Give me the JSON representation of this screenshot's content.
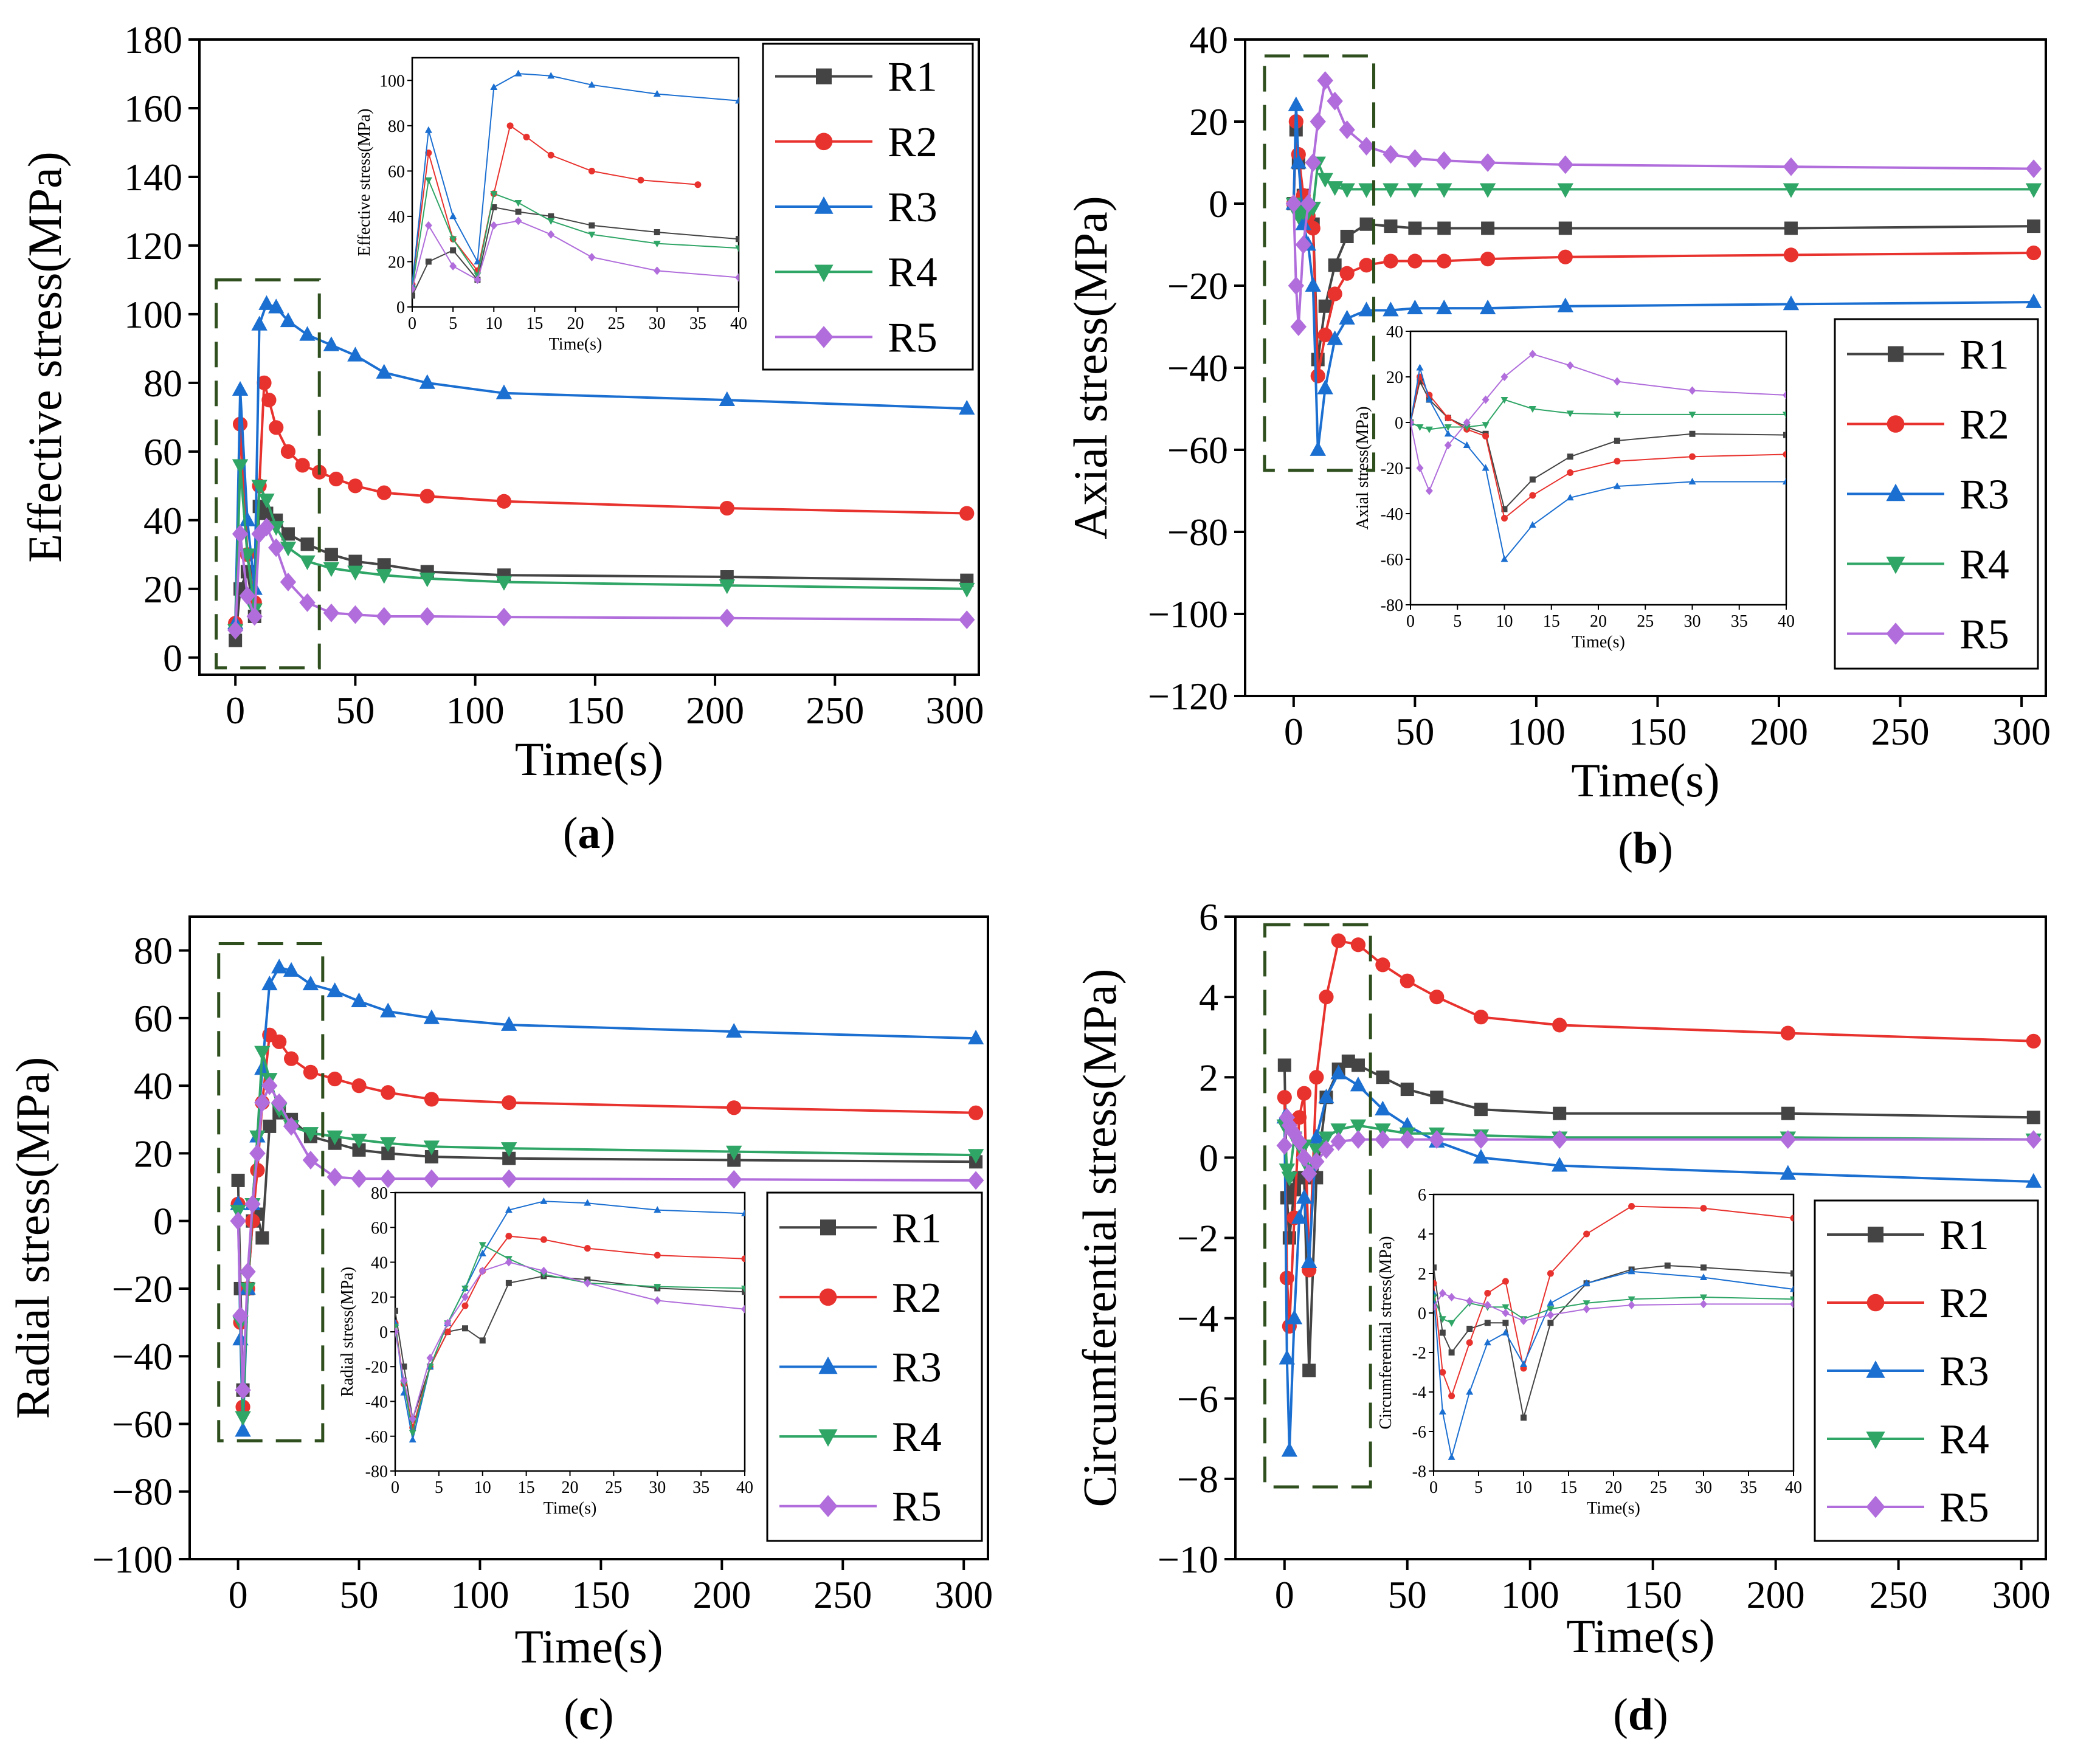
{
  "figure": {
    "series_names": [
      "R1",
      "R2",
      "R3",
      "R4",
      "R5"
    ],
    "series_colors": {
      "R1": "#444444",
      "R2": "#e8322e",
      "R3": "#1b6fd1",
      "R4": "#2fa566",
      "R5": "#b06ddb"
    },
    "series_markers": {
      "R1": "square",
      "R2": "circle",
      "R3": "triangle-up",
      "R4": "triangle-down",
      "R5": "diamond"
    }
  },
  "chart_data": [
    {
      "panel": "a",
      "type": "line",
      "label_pre": "(",
      "label_letter": "a",
      "label_post": ")",
      "xlabel": "Time(s)",
      "ylabel": "Effective stress(MPa)",
      "xlim": [
        -15,
        310
      ],
      "ylim": [
        -5,
        180
      ],
      "xticks": [
        0,
        50,
        100,
        150,
        200,
        250,
        300
      ],
      "yticks": [
        0,
        20,
        40,
        60,
        80,
        100,
        120,
        140,
        160,
        180
      ],
      "legend": [
        "R1",
        "R2",
        "R3",
        "R4",
        "R5"
      ],
      "legend_position": "top-right",
      "series": [
        {
          "name": "R1",
          "x": [
            0,
            2,
            5,
            8,
            10,
            13,
            17,
            22,
            30,
            40,
            50,
            62,
            80,
            112,
            205,
            305
          ],
          "y": [
            5,
            20,
            25,
            12,
            44,
            42,
            40,
            36,
            33,
            30,
            28,
            27,
            25,
            24,
            23.5,
            22.5
          ]
        },
        {
          "name": "R2",
          "x": [
            0,
            2,
            5,
            8,
            10,
            12,
            14,
            17,
            22,
            28,
            35,
            42,
            50,
            62,
            80,
            112,
            205,
            305
          ],
          "y": [
            10,
            68,
            30,
            16,
            50,
            80,
            75,
            67,
            60,
            56,
            54,
            52,
            50,
            48,
            47,
            45.5,
            43.5,
            42
          ]
        },
        {
          "name": "R3",
          "x": [
            0,
            2,
            5,
            8,
            10,
            13,
            17,
            22,
            30,
            40,
            50,
            62,
            80,
            112,
            205,
            305
          ],
          "y": [
            10,
            78,
            40,
            20,
            97,
            103,
            102,
            98,
            94,
            91,
            88,
            83,
            80,
            77,
            75,
            72.5
          ]
        },
        {
          "name": "R4",
          "x": [
            0,
            2,
            5,
            8,
            10,
            13,
            17,
            22,
            30,
            40,
            50,
            62,
            80,
            112,
            205,
            305
          ],
          "y": [
            8,
            56,
            30,
            14,
            50,
            46,
            38,
            32,
            28,
            26,
            25,
            24,
            23,
            22,
            21,
            20
          ]
        },
        {
          "name": "R5",
          "x": [
            0,
            2,
            5,
            8,
            10,
            13,
            17,
            22,
            30,
            40,
            50,
            62,
            80,
            112,
            205,
            305
          ],
          "y": [
            8,
            36,
            18,
            12,
            36,
            38,
            32,
            22,
            16,
            13,
            12.5,
            12,
            12,
            11.8,
            11.5,
            11
          ]
        }
      ],
      "zoom_box": {
        "x": [
          -8,
          35
        ],
        "y": [
          -3,
          110
        ]
      },
      "inset": {
        "xlabel": "Time(s)",
        "ylabel": "Effective stress(MPa)",
        "xlim": [
          0,
          40
        ],
        "ylim": [
          0,
          110
        ],
        "xticks": [
          0,
          5,
          10,
          15,
          20,
          25,
          30,
          35,
          40
        ],
        "yticks": [
          0,
          20,
          40,
          60,
          80,
          100
        ]
      }
    },
    {
      "panel": "b",
      "type": "line",
      "label_pre": "(",
      "label_letter": "b",
      "label_post": ")",
      "xlabel": "Time(s)",
      "ylabel": "Axial stress(MPa)",
      "xlim": [
        -20,
        310
      ],
      "ylim": [
        -120,
        40
      ],
      "xticks": [
        0,
        50,
        100,
        150,
        200,
        250,
        300
      ],
      "yticks": [
        -120,
        -100,
        -80,
        -60,
        -40,
        -20,
        0,
        20,
        40
      ],
      "legend": [
        "R1",
        "R2",
        "R3",
        "R4",
        "R5"
      ],
      "legend_position": "bottom-right",
      "series": [
        {
          "name": "R1",
          "x": [
            0,
            1,
            2,
            4,
            6,
            8,
            10,
            13,
            17,
            22,
            30,
            40,
            50,
            62,
            80,
            112,
            205,
            305
          ],
          "y": [
            0,
            18,
            10,
            2,
            -2,
            -5,
            -38,
            -25,
            -15,
            -8,
            -5,
            -5.5,
            -6,
            -6,
            -6,
            -6,
            -6,
            -5.5
          ]
        },
        {
          "name": "R2",
          "x": [
            0,
            1,
            2,
            4,
            6,
            8,
            10,
            13,
            17,
            22,
            30,
            40,
            50,
            62,
            80,
            112,
            205,
            305
          ],
          "y": [
            0,
            20,
            12,
            2,
            -3,
            -6,
            -42,
            -32,
            -22,
            -17,
            -15,
            -14,
            -14,
            -14,
            -13.5,
            -13,
            -12.5,
            -12
          ]
        },
        {
          "name": "R3",
          "x": [
            0,
            1,
            2,
            4,
            6,
            8,
            10,
            13,
            17,
            22,
            30,
            40,
            50,
            62,
            80,
            112,
            205,
            305
          ],
          "y": [
            0,
            24,
            10,
            -5,
            -10,
            -20,
            -60,
            -45,
            -33,
            -28,
            -26,
            -26,
            -25.5,
            -25.5,
            -25.5,
            -25,
            -24.5,
            -24
          ]
        },
        {
          "name": "R4",
          "x": [
            0,
            1,
            2,
            4,
            6,
            8,
            10,
            13,
            17,
            22,
            30,
            40,
            50,
            62,
            80,
            112,
            205,
            305
          ],
          "y": [
            0,
            -2,
            -3,
            -2,
            -2,
            -1,
            10,
            6,
            4,
            3.5,
            3.5,
            3.5,
            3.5,
            3.5,
            3.5,
            3.5,
            3.5,
            3.5
          ]
        },
        {
          "name": "R5",
          "x": [
            0,
            1,
            2,
            4,
            6,
            8,
            10,
            13,
            17,
            22,
            30,
            40,
            50,
            62,
            80,
            112,
            205,
            305
          ],
          "y": [
            0,
            -20,
            -30,
            -10,
            0,
            10,
            20,
            30,
            25,
            18,
            14,
            12,
            11,
            10.5,
            10,
            9.5,
            9,
            8.5
          ]
        }
      ],
      "zoom_box": {
        "x": [
          -12,
          33
        ],
        "y": [
          -65,
          36
        ]
      },
      "inset": {
        "xlabel": "Time(s)",
        "ylabel": "Axial stress(MPa)",
        "xlim": [
          0,
          40
        ],
        "ylim": [
          -80,
          40
        ],
        "xticks": [
          0,
          5,
          10,
          15,
          20,
          25,
          30,
          35,
          40
        ],
        "yticks": [
          -80,
          -60,
          -40,
          -20,
          0,
          20,
          40
        ]
      }
    },
    {
      "panel": "c",
      "type": "line",
      "label_pre": "(",
      "label_letter": "c",
      "label_post": ")",
      "xlabel": "Time(s)",
      "ylabel": "Radial stress(MPa)",
      "xlim": [
        -20,
        310
      ],
      "ylim": [
        -100,
        90
      ],
      "xticks": [
        0,
        50,
        100,
        150,
        200,
        250,
        300
      ],
      "yticks": [
        -100,
        -80,
        -60,
        -40,
        -20,
        0,
        20,
        40,
        60,
        80
      ],
      "legend": [
        "R1",
        "R2",
        "R3",
        "R4",
        "R5"
      ],
      "legend_position": "bottom-right",
      "series": [
        {
          "name": "R1",
          "x": [
            0,
            1,
            2,
            4,
            6,
            8,
            10,
            13,
            17,
            22,
            30,
            40,
            50,
            62,
            80,
            112,
            205,
            305
          ],
          "y": [
            12,
            -20,
            -50,
            -20,
            0,
            2,
            -5,
            28,
            32,
            30,
            25,
            23,
            21,
            20,
            19,
            18.5,
            18,
            17.5
          ]
        },
        {
          "name": "R2",
          "x": [
            0,
            1,
            2,
            4,
            6,
            8,
            10,
            13,
            17,
            22,
            30,
            40,
            50,
            62,
            80,
            112,
            205,
            305
          ],
          "y": [
            5,
            -30,
            -55,
            -20,
            0,
            15,
            35,
            55,
            53,
            48,
            44,
            42,
            40,
            38,
            36,
            35,
            33.5,
            32
          ]
        },
        {
          "name": "R3",
          "x": [
            0,
            1,
            2,
            4,
            6,
            8,
            10,
            13,
            17,
            22,
            30,
            40,
            50,
            62,
            80,
            112,
            205,
            305
          ],
          "y": [
            5,
            -35,
            -62,
            -20,
            5,
            25,
            45,
            70,
            75,
            74,
            70,
            68,
            65,
            62,
            60,
            58,
            56,
            54
          ]
        },
        {
          "name": "R4",
          "x": [
            0,
            1,
            2,
            4,
            6,
            8,
            10,
            13,
            17,
            22,
            30,
            40,
            50,
            62,
            80,
            112,
            205,
            305
          ],
          "y": [
            3,
            -30,
            -58,
            -20,
            5,
            25,
            50,
            42,
            33,
            28,
            26,
            25,
            24,
            23,
            22,
            21.5,
            20.5,
            19.5
          ]
        },
        {
          "name": "R5",
          "x": [
            0,
            1,
            2,
            4,
            6,
            8,
            10,
            13,
            17,
            22,
            30,
            40,
            50,
            62,
            80,
            112,
            205,
            305
          ],
          "y": [
            0,
            -28,
            -50,
            -15,
            5,
            20,
            35,
            40,
            35,
            28,
            18,
            13,
            12.5,
            12.5,
            12.5,
            12.5,
            12.3,
            12
          ]
        }
      ],
      "zoom_box": {
        "x": [
          -8,
          35
        ],
        "y": [
          -65,
          82
        ]
      },
      "inset": {
        "xlabel": "Time(s)",
        "ylabel": "Radial stress(MPa)",
        "xlim": [
          0,
          40
        ],
        "ylim": [
          -80,
          80
        ],
        "xticks": [
          0,
          5,
          10,
          15,
          20,
          25,
          30,
          35,
          40
        ],
        "yticks": [
          -80,
          -60,
          -40,
          -20,
          0,
          20,
          40,
          60,
          80
        ]
      }
    },
    {
      "panel": "d",
      "type": "line",
      "label_pre": "(",
      "label_letter": "d",
      "label_post": ")",
      "xlabel": "Time(s)",
      "ylabel": "Circumferential stress(MPa)",
      "xlim": [
        -20,
        310
      ],
      "ylim": [
        -10,
        6
      ],
      "xticks": [
        0,
        50,
        100,
        150,
        200,
        250,
        300
      ],
      "yticks": [
        -10,
        -8,
        -6,
        -4,
        -2,
        0,
        2,
        4,
        6
      ],
      "legend": [
        "R1",
        "R2",
        "R3",
        "R4",
        "R5"
      ],
      "legend_position": "bottom-right",
      "series": [
        {
          "name": "R1",
          "x": [
            0,
            1,
            2,
            4,
            6,
            8,
            10,
            13,
            17,
            22,
            26,
            30,
            40,
            50,
            62,
            80,
            112,
            205,
            305
          ],
          "y": [
            2.3,
            -1,
            -2,
            -0.8,
            -0.5,
            -0.5,
            -5.3,
            -0.5,
            1.5,
            2.2,
            2.4,
            2.3,
            2,
            1.7,
            1.5,
            1.2,
            1.1,
            1.1,
            1.0
          ]
        },
        {
          "name": "R2",
          "x": [
            0,
            1,
            2,
            4,
            6,
            8,
            10,
            13,
            17,
            22,
            30,
            40,
            50,
            62,
            80,
            112,
            205,
            305
          ],
          "y": [
            1.5,
            -3,
            -4.2,
            -1.5,
            1,
            1.6,
            -2.8,
            2,
            4,
            5.4,
            5.3,
            4.8,
            4.4,
            4,
            3.5,
            3.3,
            3.1,
            2.9
          ]
        },
        {
          "name": "R3",
          "x": [
            0,
            1,
            2,
            4,
            6,
            8,
            10,
            13,
            17,
            22,
            30,
            40,
            50,
            62,
            80,
            112,
            205,
            305
          ],
          "y": [
            1.0,
            -5.0,
            -7.3,
            -4.0,
            -1.5,
            -1.0,
            -2.6,
            0.5,
            1.5,
            2.1,
            1.8,
            1.2,
            0.8,
            0.4,
            0,
            -0.2,
            -0.4,
            -0.6
          ]
        },
        {
          "name": "R4",
          "x": [
            0,
            1,
            2,
            4,
            6,
            8,
            10,
            13,
            17,
            22,
            30,
            40,
            50,
            62,
            80,
            112,
            205,
            305
          ],
          "y": [
            0.8,
            -0.3,
            -0.5,
            0.5,
            0.3,
            0.3,
            -0.3,
            0.2,
            0.5,
            0.7,
            0.8,
            0.7,
            0.6,
            0.6,
            0.55,
            0.5,
            0.5,
            0.45
          ]
        },
        {
          "name": "R5",
          "x": [
            0,
            1,
            2,
            4,
            6,
            8,
            10,
            13,
            17,
            22,
            30,
            40,
            50,
            62,
            80,
            112,
            205,
            305
          ],
          "y": [
            0.3,
            1.0,
            0.8,
            0.6,
            0.4,
            0,
            -0.4,
            -0.1,
            0.2,
            0.4,
            0.45,
            0.45,
            0.45,
            0.45,
            0.45,
            0.45,
            0.45,
            0.45
          ]
        }
      ],
      "zoom_box": {
        "x": [
          -8,
          35
        ],
        "y": [
          -8.2,
          5.8
        ]
      },
      "inset": {
        "xlabel": "Time(s)",
        "ylabel": "Circumferential stress(MPa)",
        "xlim": [
          0,
          40
        ],
        "ylim": [
          -8,
          6
        ],
        "xticks": [
          0,
          5,
          10,
          15,
          20,
          25,
          30,
          35,
          40
        ],
        "yticks": [
          -8,
          -6,
          -4,
          -2,
          0,
          2,
          4,
          6
        ]
      }
    }
  ]
}
